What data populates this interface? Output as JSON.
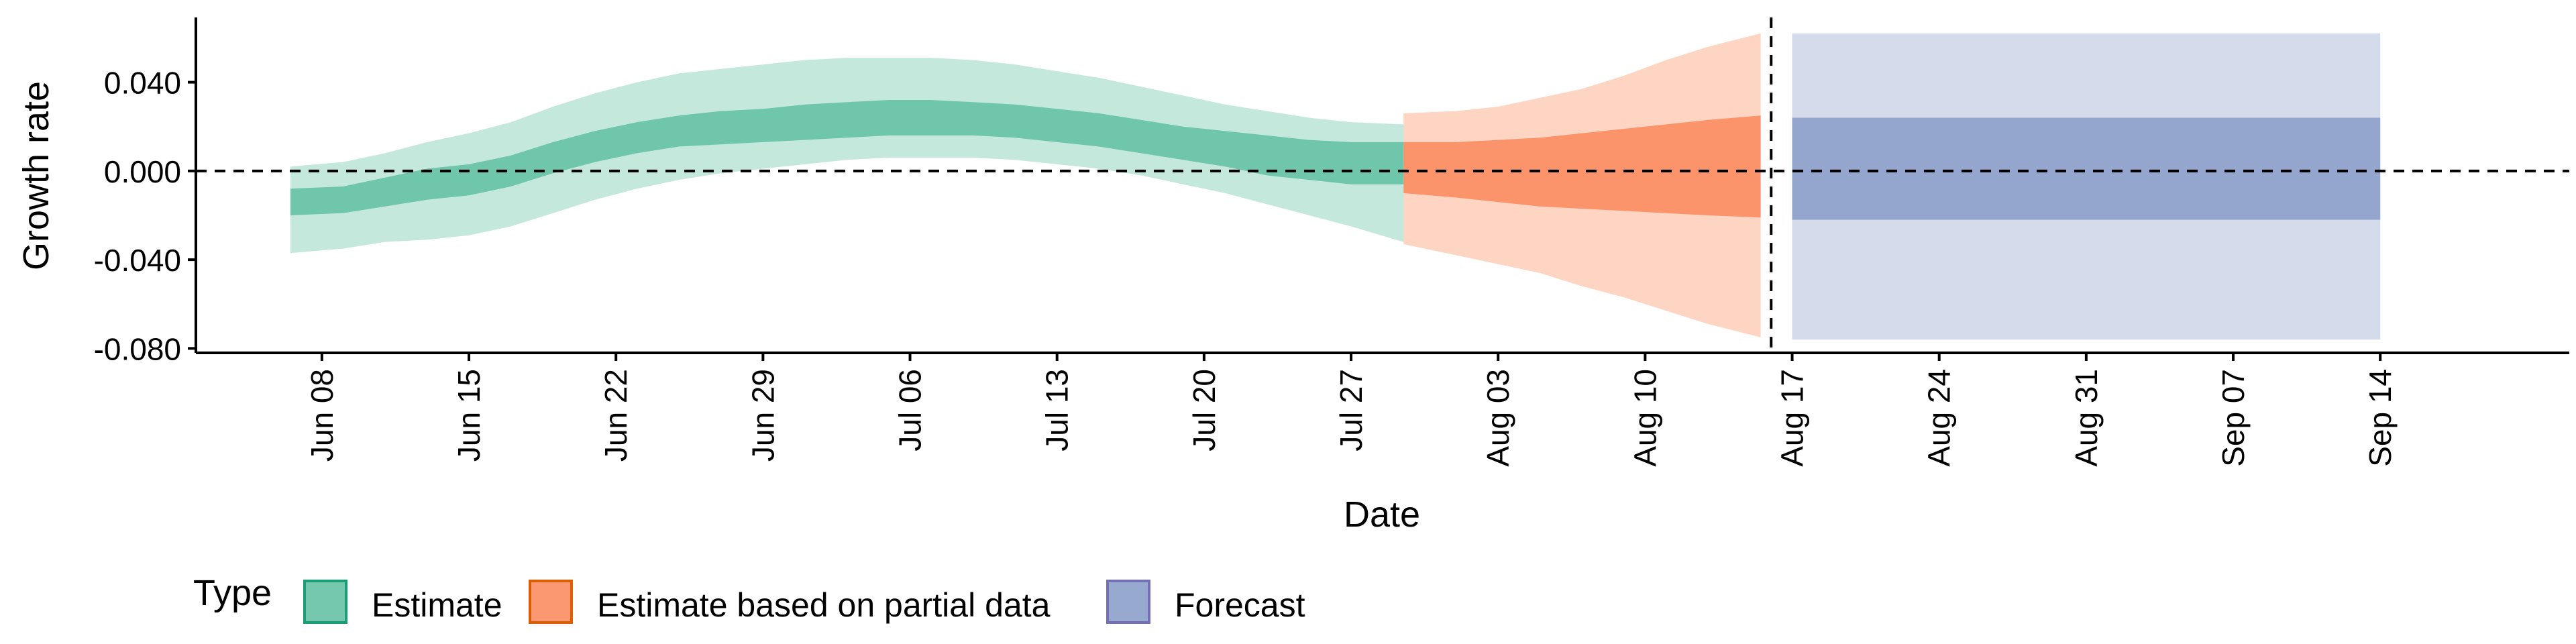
{
  "chart_data": {
    "type": "area",
    "xlabel": "Date",
    "ylabel": "Growth rate",
    "ylim": [
      -0.082,
      0.068
    ],
    "y_ticks": [
      -0.08,
      -0.04,
      0.0,
      0.04
    ],
    "y_tick_labels": [
      "-0.080",
      "-0.040",
      "0.000",
      "0.040"
    ],
    "x_ticks": [
      "2020-06-08",
      "2020-06-15",
      "2020-06-22",
      "2020-06-29",
      "2020-07-06",
      "2020-07-13",
      "2020-07-20",
      "2020-07-27",
      "2020-08-03",
      "2020-08-10",
      "2020-08-17",
      "2020-08-24",
      "2020-08-31",
      "2020-09-07",
      "2020-09-14"
    ],
    "x_tick_labels": [
      "Jun 08",
      "Jun 15",
      "Jun 22",
      "Jun 29",
      "Jul 06",
      "Jul 13",
      "Jul 20",
      "Jul 27",
      "Aug 03",
      "Aug 10",
      "Aug 17",
      "Aug 24",
      "Aug 31",
      "Sep 07",
      "Sep 14"
    ],
    "x_range": [
      "2020-06-02",
      "2020-09-23"
    ],
    "reference_lines": {
      "horizontal_y": 0.0,
      "vertical_date": "2020-08-16",
      "style": "dashed"
    },
    "legend": {
      "title": "Type",
      "placement": "bottom-left",
      "entries": [
        "Estimate",
        "Estimate based on partial data",
        "Forecast"
      ]
    },
    "series": [
      {
        "name": "Estimate",
        "color": "#66c2a5",
        "dates": [
          "2020-06-07",
          "2020-06-09",
          "2020-06-11",
          "2020-06-13",
          "2020-06-15",
          "2020-06-17",
          "2020-06-19",
          "2020-06-21",
          "2020-06-23",
          "2020-06-25",
          "2020-06-27",
          "2020-06-29",
          "2020-07-01",
          "2020-07-03",
          "2020-07-05",
          "2020-07-07",
          "2020-07-09",
          "2020-07-11",
          "2020-07-13",
          "2020-07-15",
          "2020-07-17",
          "2020-07-19",
          "2020-07-21",
          "2020-07-23",
          "2020-07-25",
          "2020-07-27",
          "2020-07-29"
        ],
        "lower90": [
          -0.037,
          -0.035,
          -0.032,
          -0.031,
          -0.029,
          -0.025,
          -0.019,
          -0.013,
          -0.008,
          -0.004,
          -0.001,
          0.001,
          0.003,
          0.005,
          0.006,
          0.006,
          0.006,
          0.005,
          0.003,
          0.001,
          -0.002,
          -0.006,
          -0.01,
          -0.015,
          -0.02,
          -0.025,
          -0.032
        ],
        "upper90": [
          0.002,
          0.004,
          0.008,
          0.013,
          0.017,
          0.022,
          0.029,
          0.035,
          0.04,
          0.044,
          0.046,
          0.048,
          0.05,
          0.051,
          0.051,
          0.051,
          0.05,
          0.048,
          0.045,
          0.042,
          0.038,
          0.034,
          0.03,
          0.027,
          0.024,
          0.022,
          0.021
        ],
        "lower50": [
          -0.02,
          -0.019,
          -0.016,
          -0.013,
          -0.011,
          -0.007,
          -0.001,
          0.004,
          0.008,
          0.011,
          0.012,
          0.013,
          0.014,
          0.015,
          0.016,
          0.016,
          0.016,
          0.015,
          0.013,
          0.011,
          0.008,
          0.005,
          0.002,
          -0.002,
          -0.004,
          -0.006,
          -0.006
        ],
        "upper50": [
          -0.008,
          -0.007,
          -0.003,
          0.001,
          0.003,
          0.007,
          0.013,
          0.018,
          0.022,
          0.025,
          0.027,
          0.028,
          0.03,
          0.031,
          0.032,
          0.032,
          0.031,
          0.03,
          0.028,
          0.026,
          0.023,
          0.02,
          0.018,
          0.016,
          0.014,
          0.013,
          0.013
        ]
      },
      {
        "name": "Estimate based on partial data",
        "color": "#fc8d62",
        "dates": [
          "2020-07-30",
          "2020-08-01",
          "2020-08-03",
          "2020-08-05",
          "2020-08-07",
          "2020-08-09",
          "2020-08-11",
          "2020-08-13",
          "2020-08-15"
        ],
        "lower90": [
          -0.033,
          -0.038,
          -0.042,
          -0.046,
          -0.052,
          -0.057,
          -0.063,
          -0.069,
          -0.075
        ],
        "upper90": [
          0.026,
          0.027,
          0.029,
          0.033,
          0.037,
          0.043,
          0.05,
          0.056,
          0.062
        ],
        "lower50": [
          -0.01,
          -0.012,
          -0.014,
          -0.016,
          -0.017,
          -0.018,
          -0.019,
          -0.02,
          -0.021
        ],
        "upper50": [
          0.013,
          0.013,
          0.014,
          0.015,
          0.017,
          0.019,
          0.021,
          0.023,
          0.025
        ]
      },
      {
        "name": "Forecast",
        "color": "#8da0cb",
        "dates": [
          "2020-08-17",
          "2020-09-14"
        ],
        "lower90": [
          -0.076,
          -0.076
        ],
        "upper90": [
          0.062,
          0.062
        ],
        "lower50": [
          -0.022,
          -0.022
        ],
        "upper50": [
          0.024,
          0.024
        ]
      }
    ]
  },
  "colors": {
    "estimate_fill": "#66c2a5",
    "estimate_border": "#1b9e77",
    "partial_fill": "#fc8d62",
    "partial_border": "#d95f02",
    "forecast_fill": "#8da0cb",
    "forecast_border": "#7570b3"
  }
}
